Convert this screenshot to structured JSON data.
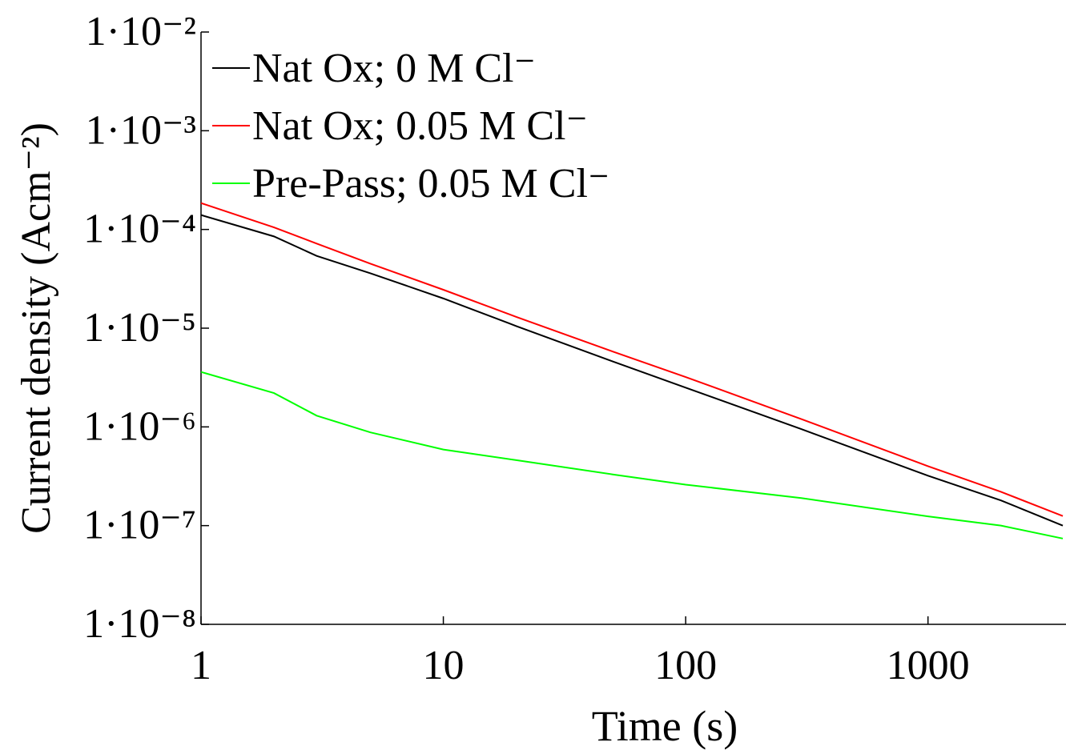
{
  "chart_data": {
    "type": "line",
    "x_label": "Time (s)",
    "y_label": "Current density (Acm⁻²)",
    "xscale": "log",
    "yscale": "log",
    "xlim": [
      1,
      3600
    ],
    "ylim": [
      1e-08,
      0.01
    ],
    "xticks": [
      1,
      10,
      100,
      1000
    ],
    "yticks": [
      {
        "value": 1e-08,
        "label": "1·10⁻⁸"
      },
      {
        "value": 1e-07,
        "label": "1·10⁻⁷"
      },
      {
        "value": 1e-06,
        "label": "1·10⁻⁶"
      },
      {
        "value": 1e-05,
        "label": "1·10⁻⁵"
      },
      {
        "value": 0.0001,
        "label": "1·10⁻⁴"
      },
      {
        "value": 0.001,
        "label": "1·10⁻³"
      },
      {
        "value": 0.01,
        "label": "1·10⁻²"
      }
    ],
    "legend": "top-left",
    "x": [
      1,
      2,
      3,
      5,
      10,
      20,
      50,
      100,
      300,
      1000,
      2000,
      3600
    ],
    "series": [
      {
        "name": "Nat Ox; 0 M Cl⁻",
        "color": "#000000",
        "values": [
          0.00014,
          8.5e-05,
          5.4e-05,
          3.6e-05,
          2e-05,
          1.05e-05,
          4.6e-06,
          2.5e-06,
          9.5e-07,
          3.2e-07,
          1.8e-07,
          1e-07
        ]
      },
      {
        "name": "Nat Ox; 0.05 M Cl⁻",
        "color": "#ff0000",
        "values": [
          0.000185,
          0.000105,
          7.2e-05,
          4.5e-05,
          2.45e-05,
          1.3e-05,
          5.8e-06,
          3.2e-06,
          1.2e-06,
          4e-07,
          2.2e-07,
          1.25e-07
        ]
      },
      {
        "name": "Pre-Pass; 0.05 M Cl⁻",
        "color": "#00ff00",
        "values": [
          3.6e-06,
          2.2e-06,
          1.3e-06,
          8.8e-07,
          5.9e-07,
          4.6e-07,
          3.3e-07,
          2.6e-07,
          1.9e-07,
          1.24e-07,
          1e-07,
          7.4e-08
        ]
      }
    ]
  }
}
